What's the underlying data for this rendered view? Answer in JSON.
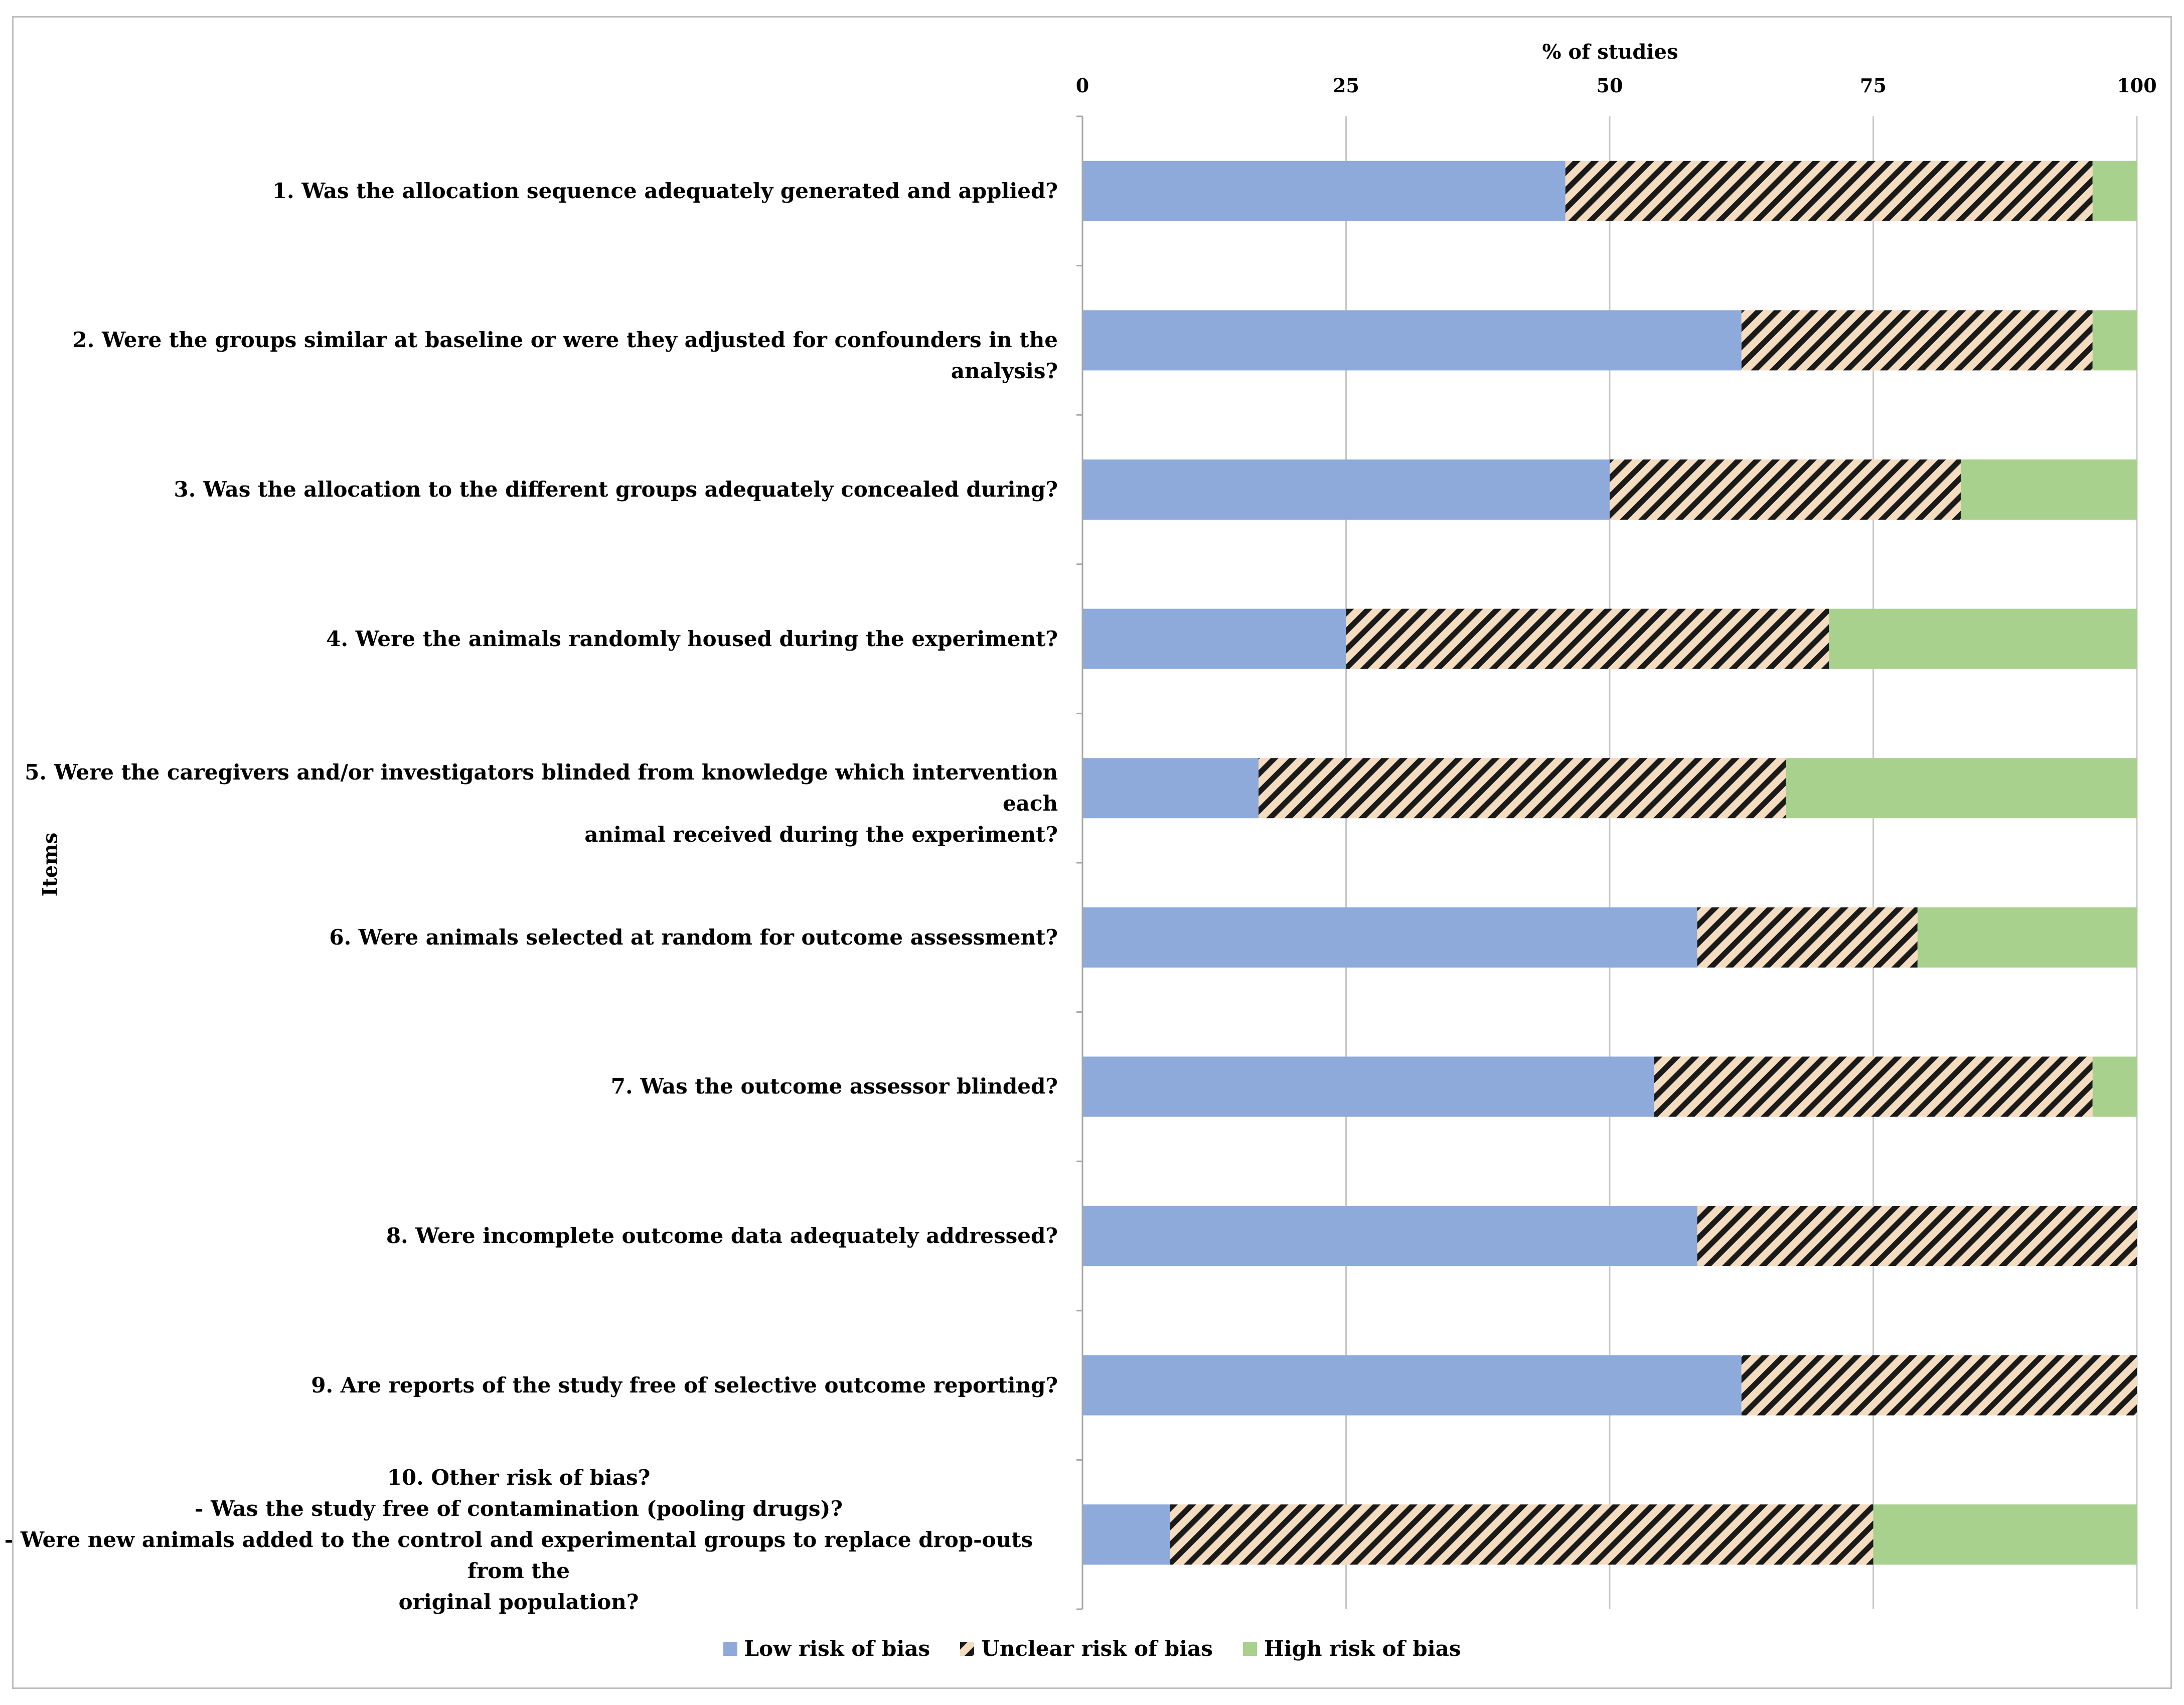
{
  "chart_data": {
    "type": "bar",
    "orientation": "horizontal",
    "stacked": true,
    "xlabel": "% of studies",
    "ylabel": "Items",
    "xlim": [
      0,
      100
    ],
    "xticks": [
      "0",
      "25",
      "50",
      "75",
      "100"
    ],
    "grid": true,
    "legend_position": "bottom",
    "categories": [
      [
        "1. Was the allocation sequence adequately generated and applied?"
      ],
      [
        "2. Were the groups similar at baseline or were they adjusted for confounders in the analysis?"
      ],
      [
        "3. Was the allocation to the different groups adequately concealed during?"
      ],
      [
        "4. Were the animals randomly housed during the experiment?"
      ],
      [
        "5. Were the caregivers and/or investigators blinded from knowledge which intervention each",
        "animal received during the experiment?"
      ],
      [
        "6. Were animals selected at random for outcome assessment?"
      ],
      [
        "7. Was the outcome assessor blinded?"
      ],
      [
        "8. Were incomplete outcome data adequately addressed?"
      ],
      [
        "9. Are reports of the study free of selective outcome reporting?"
      ],
      [
        "10. Other risk of bias?",
        "- Was the study free of contamination (pooling drugs)?",
        "- Were new animals added to the control and experimental groups to replace drop-outs from the",
        "original population?"
      ]
    ],
    "series": [
      {
        "name": "Low risk of bias",
        "color": "#8eaadb",
        "pattern": "solid",
        "values": [
          45.8,
          62.5,
          50.0,
          25.0,
          16.7,
          58.3,
          54.2,
          58.3,
          62.5,
          8.3
        ]
      },
      {
        "name": "Unclear risk of bias",
        "color": "#f4dcc0",
        "pattern": "diagonal-stripes",
        "values": [
          50.0,
          33.3,
          33.3,
          45.8,
          50.0,
          20.9,
          41.6,
          41.7,
          37.5,
          66.7
        ]
      },
      {
        "name": "High risk of bias",
        "color": "#a9d18e",
        "pattern": "solid",
        "values": [
          4.2,
          4.2,
          16.7,
          29.2,
          33.3,
          20.8,
          4.2,
          0.0,
          0.0,
          25.0
        ]
      }
    ]
  }
}
